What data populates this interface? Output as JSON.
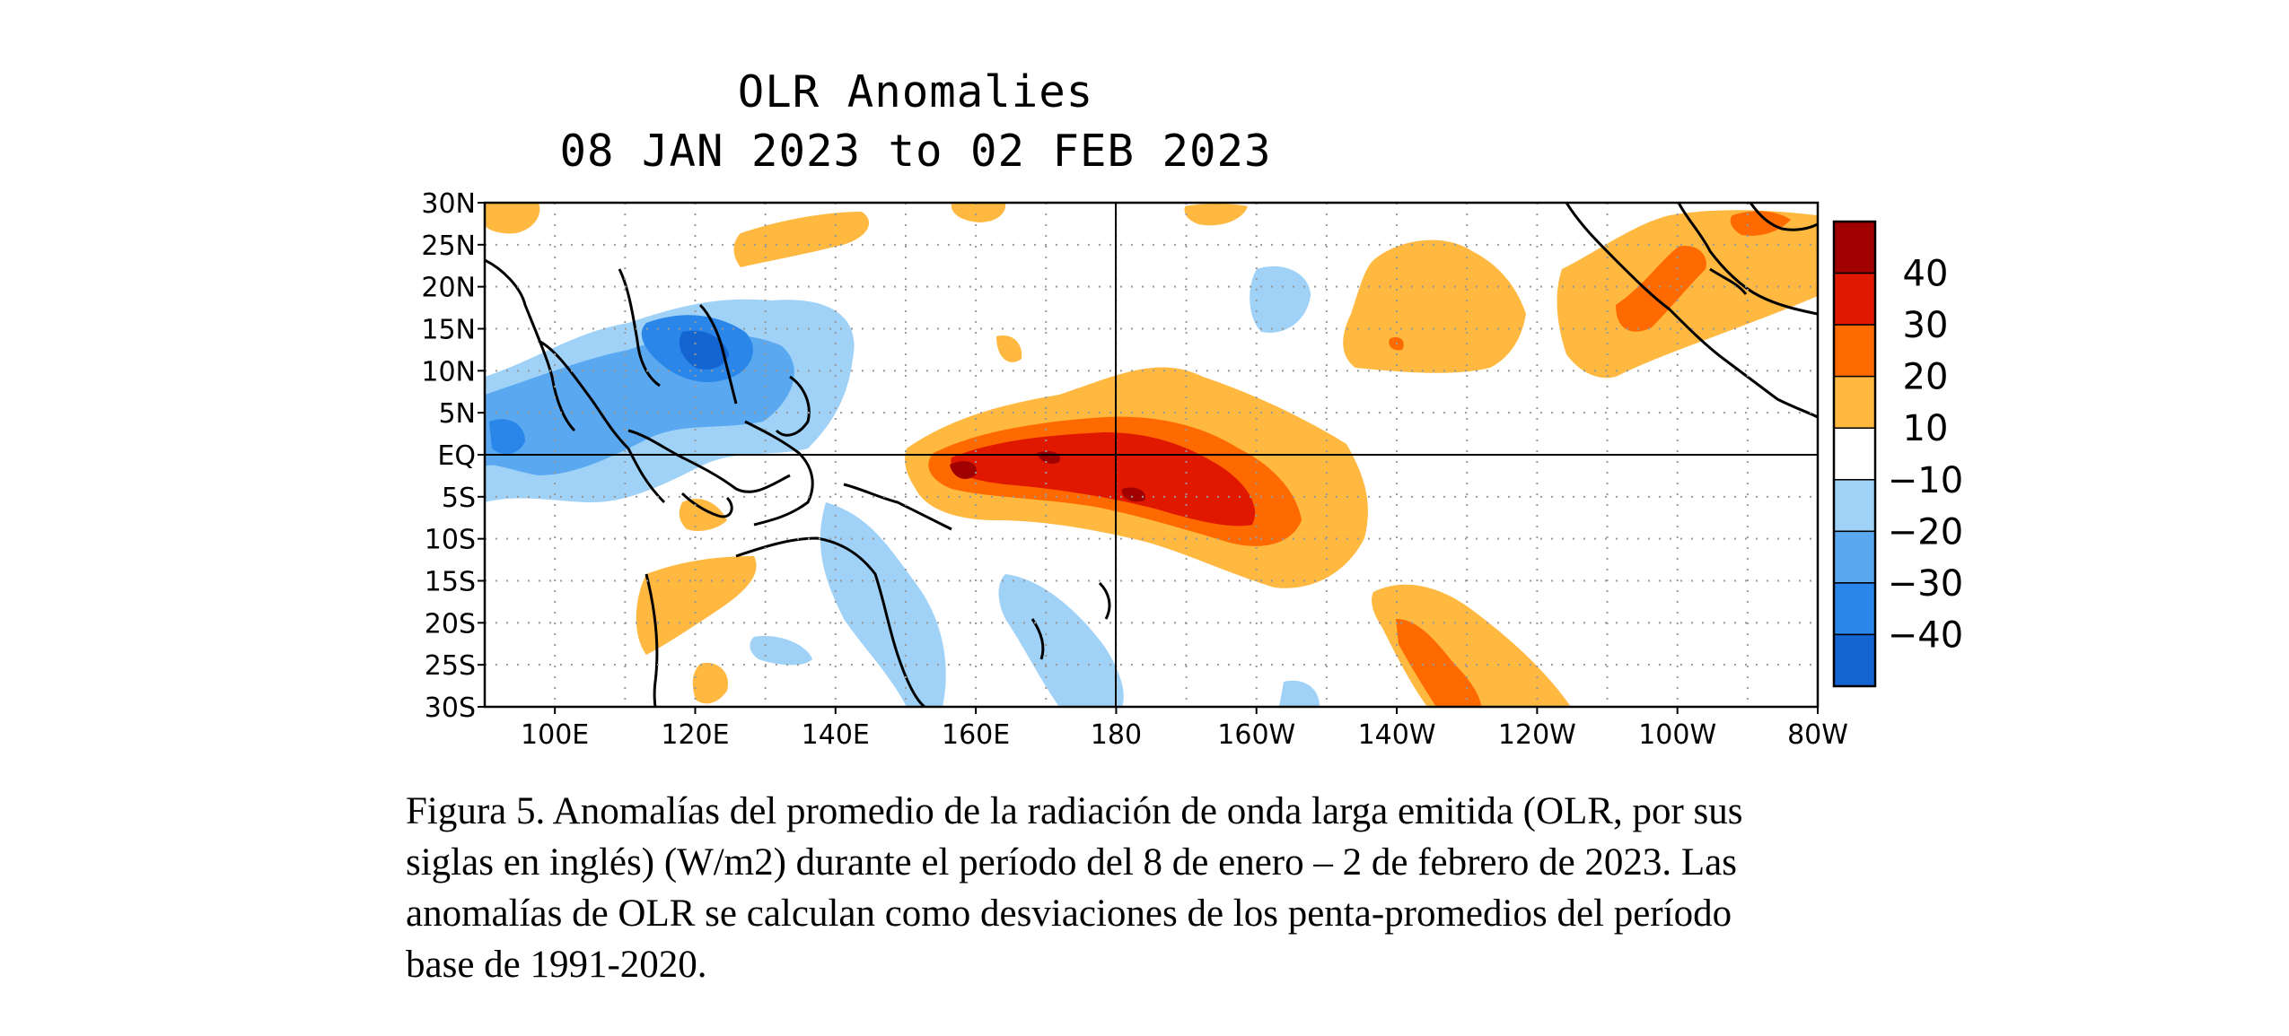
{
  "title": "OLR Anomalies",
  "subtitle": "08 JAN 2023 to 02 FEB 2023",
  "lat_labels": [
    "30N",
    "25N",
    "20N",
    "15N",
    "10N",
    "5N",
    "EQ",
    "5S",
    "10S",
    "15S",
    "20S",
    "25S",
    "30S"
  ],
  "lon_labels": [
    "100E",
    "120E",
    "140E",
    "160E",
    "180",
    "160W",
    "140W",
    "120W",
    "100W",
    "80W"
  ],
  "colorbar": {
    "tick_labels": [
      "40",
      "30",
      "20",
      "10",
      "−10",
      "−20",
      "−30",
      "−40"
    ],
    "colors": [
      "#a00000",
      "#e01800",
      "#ff6a00",
      "#ffb840",
      "#ffffff",
      "#a0d2f8",
      "#5aa8f0",
      "#2a86e8",
      "#1464d2"
    ]
  },
  "chart_data": {
    "type": "heatmap",
    "title": "OLR Anomalies",
    "subtitle": "08 JAN 2023 to 02 FEB 2023",
    "xlim": [
      90,
      280
    ],
    "ylim": [
      -30,
      30
    ],
    "contour_levels": [
      -40,
      -30,
      -20,
      -10,
      10,
      20,
      30,
      40
    ]
  },
  "caption": {
    "line1": "Figura 5. Anomalías del promedio de la radiación de onda larga emitida (OLR, por sus",
    "line2": "siglas en inglés) (W/m2) durante el período del 8 de enero – 2 de febrero de 2023.  Las",
    "line3": "anomalías de OLR se calculan como desviaciones de los penta-promedios del período",
    "line4": "base de 1991-2020."
  }
}
